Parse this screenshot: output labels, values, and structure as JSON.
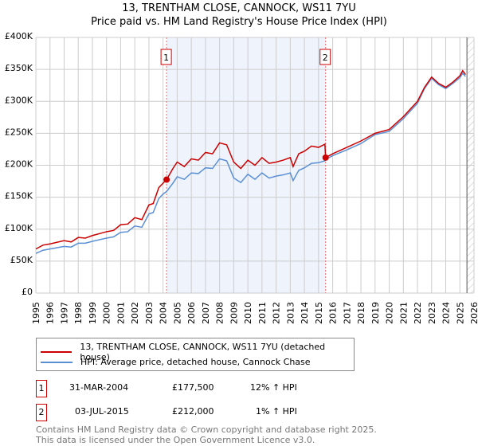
{
  "title": "13, TRENTHAM CLOSE, CANNOCK, WS11 7YU",
  "subtitle": "Price paid vs. HM Land Registry's House Price Index (HPI)",
  "chart_data": {
    "type": "line",
    "ylim": [
      0,
      400000
    ],
    "xlim": [
      1995,
      2026
    ],
    "yticks": [
      0,
      50000,
      100000,
      150000,
      200000,
      250000,
      300000,
      350000,
      400000
    ],
    "ytick_labels": [
      "£0",
      "£50K",
      "£100K",
      "£150K",
      "£200K",
      "£250K",
      "£300K",
      "£350K",
      "£400K"
    ],
    "xticks": [
      "1995",
      "1996",
      "1997",
      "1998",
      "1999",
      "2000",
      "2001",
      "2002",
      "2003",
      "2004",
      "2005",
      "2006",
      "2007",
      "2008",
      "2009",
      "2010",
      "2011",
      "2012",
      "2013",
      "2014",
      "2015",
      "2016",
      "2017",
      "2018",
      "2019",
      "2020",
      "2021",
      "2022",
      "2023",
      "2024",
      "2025",
      "2026"
    ],
    "grid": true,
    "shaded_range": [
      2004.25,
      2015.5
    ],
    "hatched_from": 2025.5,
    "series": [
      {
        "name": "13, TRENTHAM CLOSE, CANNOCK, WS11 7YU (detached house)",
        "color": "#cc0000",
        "x": [
          1995,
          1995.5,
          1996,
          1997,
          1997.5,
          1998,
          1998.5,
          1999,
          2000,
          2000.5,
          2001,
          2001.5,
          2002,
          2002.5,
          2003,
          2003.3,
          2003.7,
          2004,
          2004.25,
          2004.7,
          2005,
          2005.5,
          2006,
          2006.5,
          2007,
          2007.5,
          2008,
          2008.5,
          2009,
          2009.5,
          2010,
          2010.5,
          2011,
          2011.5,
          2012,
          2012.5,
          2013,
          2013.2,
          2013.6,
          2014,
          2014.5,
          2015,
          2015.45,
          2015.5,
          2016,
          2017,
          2018,
          2019,
          2020,
          2021,
          2022,
          2022.5,
          2023,
          2023.5,
          2024,
          2024.5,
          2025,
          2025.2,
          2025.4
        ],
        "y": [
          69000,
          75000,
          77000,
          82000,
          80000,
          87000,
          86000,
          90000,
          96000,
          98000,
          107000,
          108000,
          118000,
          115000,
          138000,
          140000,
          165000,
          172000,
          177500,
          195000,
          205000,
          198000,
          210000,
          208000,
          220000,
          218000,
          235000,
          232000,
          205000,
          195000,
          208000,
          200000,
          212000,
          203000,
          205000,
          208000,
          212000,
          198000,
          218000,
          222000,
          230000,
          228000,
          233000,
          212000,
          218000,
          228000,
          238000,
          250000,
          256000,
          276000,
          300000,
          322000,
          338000,
          328000,
          322000,
          330000,
          340000,
          348000,
          342000
        ]
      },
      {
        "name": "HPI: Average price, detached house, Cannock Chase",
        "color": "#5b8fd4",
        "x": [
          1995,
          1995.5,
          1996,
          1997,
          1997.5,
          1998,
          1998.5,
          1999,
          2000,
          2000.5,
          2001,
          2001.5,
          2002,
          2002.5,
          2003,
          2003.3,
          2003.7,
          2004,
          2004.25,
          2004.7,
          2005,
          2005.5,
          2006,
          2006.5,
          2007,
          2007.5,
          2008,
          2008.5,
          2009,
          2009.5,
          2010,
          2010.5,
          2011,
          2011.5,
          2012,
          2012.5,
          2013,
          2013.2,
          2013.6,
          2014,
          2014.5,
          2015,
          2015.45,
          2015.5,
          2016,
          2017,
          2018,
          2019,
          2020,
          2021,
          2022,
          2022.5,
          2023,
          2023.5,
          2024,
          2024.5,
          2025,
          2025.2,
          2025.4
        ],
        "y": [
          62000,
          67000,
          69000,
          73000,
          72000,
          78000,
          78000,
          81000,
          86000,
          88000,
          95000,
          96000,
          105000,
          103000,
          124000,
          126000,
          148000,
          155000,
          159000,
          172000,
          182000,
          178000,
          188000,
          187000,
          196000,
          195000,
          210000,
          207000,
          180000,
          173000,
          186000,
          178000,
          188000,
          180000,
          183000,
          185000,
          188000,
          176000,
          192000,
          196000,
          203000,
          204000,
          207000,
          209000,
          215000,
          224000,
          234000,
          248000,
          253000,
          273000,
          297000,
          320000,
          336000,
          326000,
          320000,
          328000,
          337000,
          344000,
          339000
        ]
      }
    ],
    "annotations": [
      {
        "label": "1",
        "x": 2004.25,
        "y": 177500
      },
      {
        "label": "2",
        "x": 2015.5,
        "y": 212000
      }
    ]
  },
  "legend": [
    "13, TRENTHAM CLOSE, CANNOCK, WS11 7YU (detached house)",
    "HPI: Average price, detached house, Cannock Chase"
  ],
  "transactions": [
    {
      "num": "1",
      "date": "31-MAR-2004",
      "price": "£177,500",
      "hpi": "12% ↑ HPI"
    },
    {
      "num": "2",
      "date": "03-JUL-2015",
      "price": "£212,000",
      "hpi": "1% ↑ HPI"
    }
  ],
  "footer": [
    "Contains HM Land Registry data © Crown copyright and database right 2025.",
    "This data is licensed under the Open Government Licence v3.0."
  ]
}
